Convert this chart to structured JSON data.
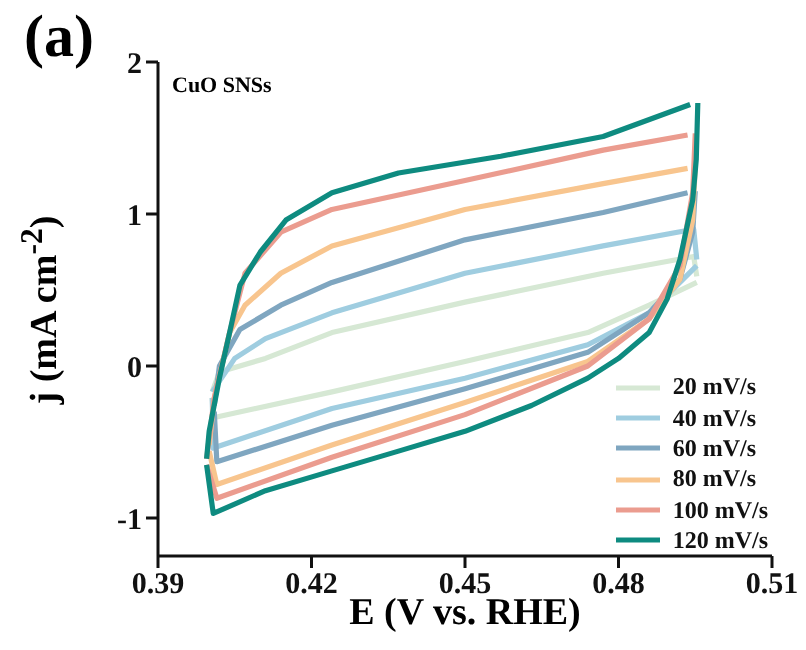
{
  "chart_data": {
    "type": "line",
    "title": "(a)",
    "xlabel": "E (V vs. RHE)",
    "ylabel": "j (mA cm$^{-2}$)",
    "annotations": [
      "CuO SNSs"
    ],
    "xlim": [
      0.39,
      0.51
    ],
    "xticks": [
      0.39,
      0.42,
      0.45,
      0.48,
      0.51
    ],
    "ylim": [
      -1.25,
      2
    ],
    "yticks": [
      -1,
      0,
      1,
      2
    ],
    "grid": false,
    "legend": "bottom right",
    "marker": "none",
    "line_style": "solid",
    "series": [
      {
        "name": "20 mV/s",
        "color": "#d6e8d4",
        "x": [
          0.4006,
          0.4008,
          0.424,
          0.45,
          0.474,
          0.486,
          0.4953
        ],
        "values": [
          -0.21,
          -0.34,
          -0.17,
          0.03,
          0.22,
          0.4,
          0.55
        ]
      },
      {
        "color": "#d6e8d4",
        "x": [
          0.4953,
          0.4947,
          0.477,
          0.45,
          0.424,
          0.411,
          0.402,
          0.4006
        ],
        "values": [
          0.59,
          0.72,
          0.61,
          0.42,
          0.22,
          0.05,
          -0.04,
          -0.17
        ]
      },
      {
        "name": "40 mV/s",
        "color": "#9fcde0",
        "x": [
          0.4006,
          0.4008,
          0.424,
          0.45,
          0.474,
          0.486,
          0.4953
        ],
        "values": [
          -0.21,
          -0.54,
          -0.28,
          -0.08,
          0.14,
          0.35,
          0.66
        ]
      },
      {
        "color": "#9fcde0",
        "x": [
          0.4953,
          0.4947,
          0.477,
          0.45,
          0.424,
          0.411,
          0.405,
          0.4006
        ],
        "values": [
          0.7,
          0.9,
          0.79,
          0.61,
          0.35,
          0.18,
          0.05,
          -0.17
        ]
      },
      {
        "name": "60 mV/s",
        "color": "#7fa6c0",
        "x": [
          0.401,
          0.4015,
          0.424,
          0.45,
          0.474,
          0.486,
          0.492,
          0.4945,
          0.495
        ],
        "values": [
          -0.3,
          -0.63,
          -0.39,
          -0.15,
          0.09,
          0.35,
          0.57,
          0.88,
          1.15
        ]
      },
      {
        "color": "#7fa6c0",
        "x": [
          0.4935,
          0.477,
          0.45,
          0.424,
          0.414,
          0.406,
          0.402,
          0.401
        ],
        "values": [
          1.14,
          1.01,
          0.83,
          0.55,
          0.4,
          0.24,
          0.0,
          -0.26
        ]
      },
      {
        "name": "80 mV/s",
        "color": "#f8c58e",
        "x": [
          0.4,
          0.4015,
          0.424,
          0.45,
          0.474,
          0.486,
          0.492,
          0.4945,
          0.495
        ],
        "values": [
          -0.56,
          -0.78,
          -0.52,
          -0.24,
          0.03,
          0.31,
          0.57,
          0.96,
          1.31
        ]
      },
      {
        "color": "#f8c58e",
        "x": [
          0.4935,
          0.477,
          0.45,
          0.424,
          0.414,
          0.407,
          0.404,
          0.401,
          0.4
        ],
        "values": [
          1.3,
          1.2,
          1.03,
          0.79,
          0.61,
          0.4,
          0.22,
          -0.21,
          -0.52
        ]
      },
      {
        "name": "100 mV/s",
        "color": "#eb9c8f",
        "x": [
          0.3995,
          0.4015,
          0.424,
          0.45,
          0.474,
          0.486,
          0.492,
          0.4945,
          0.495
        ],
        "values": [
          -0.65,
          -0.87,
          -0.6,
          -0.32,
          0.0,
          0.31,
          0.66,
          1.14,
          1.53
        ]
      },
      {
        "color": "#eb9c8f",
        "x": [
          0.4935,
          0.477,
          0.45,
          0.424,
          0.414,
          0.407,
          0.404,
          0.401,
          0.3995
        ],
        "values": [
          1.52,
          1.42,
          1.22,
          1.03,
          0.88,
          0.61,
          0.22,
          -0.21,
          -0.61
        ]
      },
      {
        "name": "120 mV/s",
        "color": "#0e8b80",
        "x": [
          0.3995,
          0.4008,
          0.411,
          0.424,
          0.437,
          0.45,
          0.463,
          0.474,
          0.48,
          0.486,
          0.4895,
          0.492,
          0.4945,
          0.4952,
          0.4955
        ],
        "values": [
          -0.65,
          -0.97,
          -0.82,
          -0.69,
          -0.56,
          -0.43,
          -0.26,
          -0.08,
          0.05,
          0.22,
          0.44,
          0.7,
          1.09,
          1.36,
          1.73
        ]
      },
      {
        "color": "#0e8b80",
        "x": [
          0.494,
          0.477,
          0.457,
          0.437,
          0.424,
          0.415,
          0.41,
          0.406,
          0.404,
          0.402,
          0.4,
          0.3995
        ],
        "values": [
          1.72,
          1.51,
          1.38,
          1.27,
          1.14,
          0.96,
          0.75,
          0.53,
          0.22,
          -0.08,
          -0.43,
          -0.61
        ]
      }
    ]
  }
}
